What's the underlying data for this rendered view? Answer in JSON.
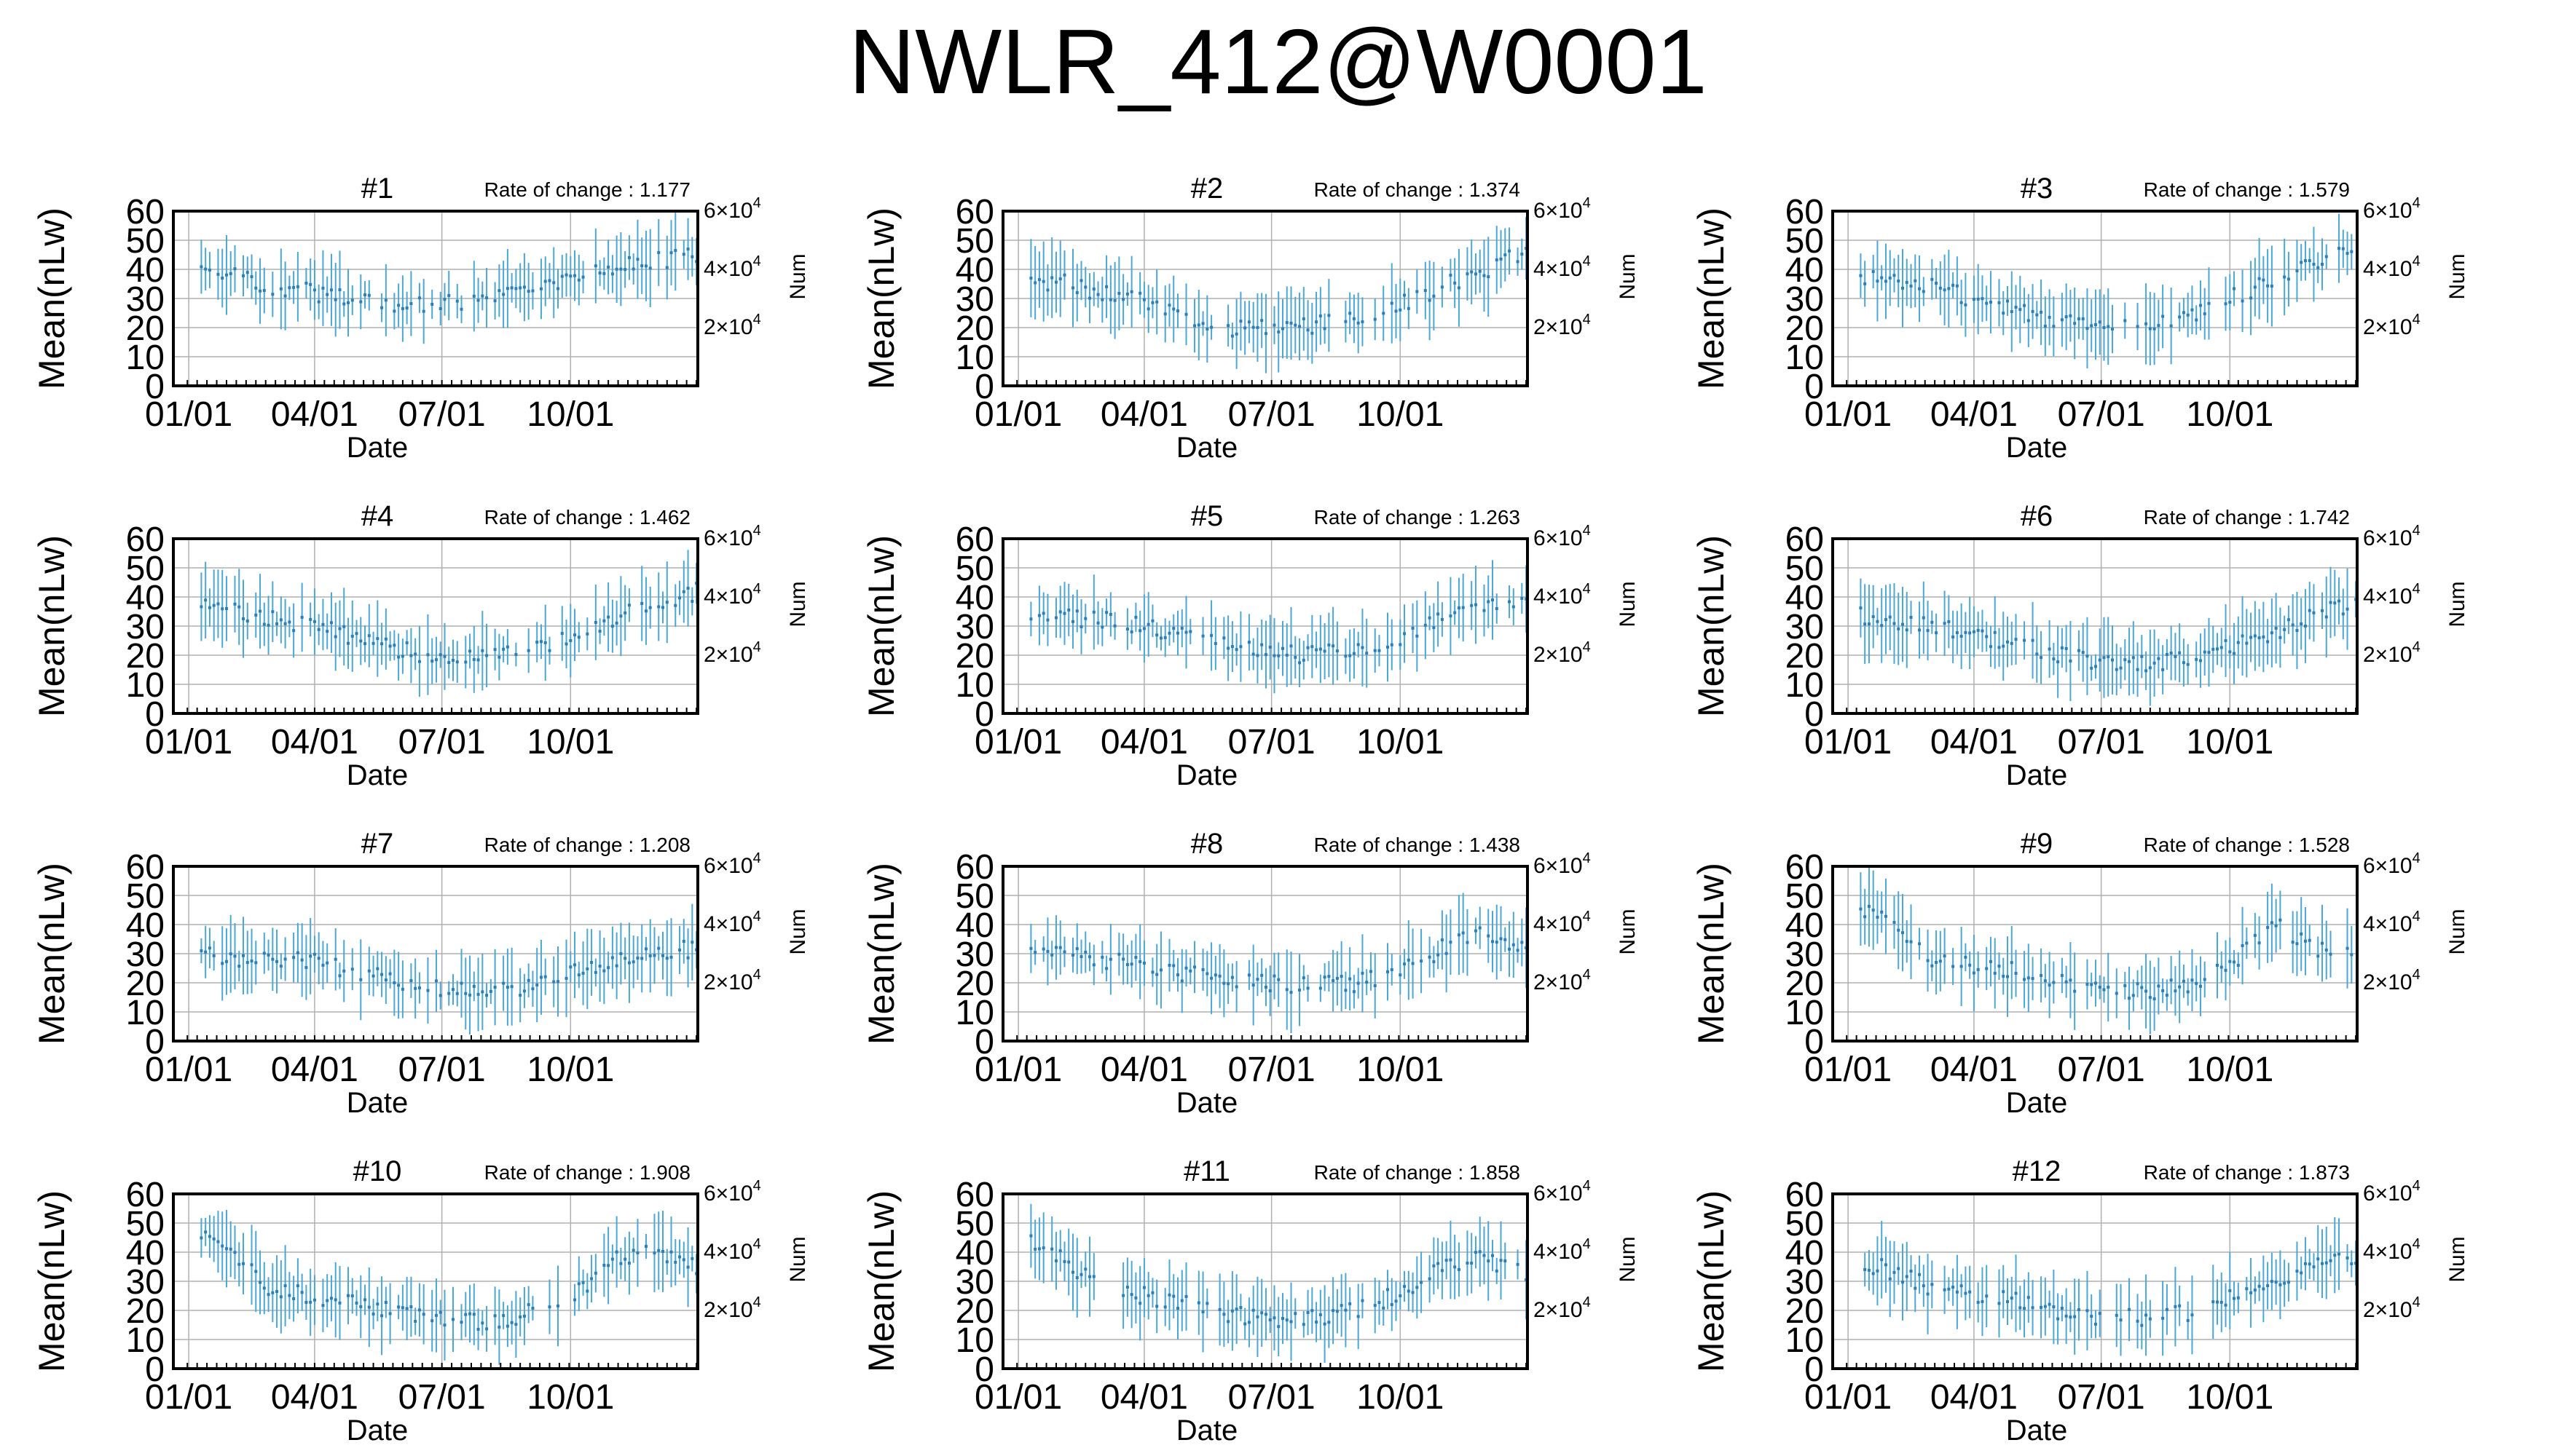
{
  "page": {
    "title": "NWLR_412@W0001"
  },
  "chart_common": {
    "type": "line",
    "xlabel": "Date",
    "ylabel": "Mean(nLw)",
    "y2label": "Num",
    "x_ticks": [
      "01/01",
      "04/01",
      "07/01",
      "10/01"
    ],
    "x_tick_days": [
      1,
      91,
      182,
      274
    ],
    "xlim": [
      -10,
      365
    ],
    "ylim": [
      0,
      60
    ],
    "y_ticks": [
      0,
      10,
      20,
      30,
      40,
      50,
      60
    ],
    "y2_ticks": [
      {
        "value": 20000,
        "mantissa": "2×10",
        "exponent": "4"
      },
      {
        "value": 40000,
        "mantissa": "4×10",
        "exponent": "4"
      },
      {
        "value": 60000,
        "mantissa": "6×10",
        "exponent": "4"
      }
    ],
    "y2lim": [
      0,
      60000
    ],
    "grid": true,
    "series_color": "#4aa8d8",
    "rate_prefix": "Rate of change : "
  },
  "chart_data": [
    {
      "panel": "#1",
      "rate_of_change": "1.177",
      "days_step": 7,
      "mean_profile": [
        [
          1,
          38
        ],
        [
          30,
          38
        ],
        [
          60,
          34
        ],
        [
          91,
          32
        ],
        [
          120,
          30
        ],
        [
          152,
          28
        ],
        [
          182,
          28
        ],
        [
          213,
          30
        ],
        [
          244,
          32
        ],
        [
          274,
          36
        ],
        [
          305,
          40
        ],
        [
          335,
          43
        ],
        [
          365,
          45
        ]
      ]
    },
    {
      "panel": "#2",
      "rate_of_change": "1.374",
      "days_step": 7,
      "mean_profile": [
        [
          1,
          35
        ],
        [
          30,
          36
        ],
        [
          60,
          32
        ],
        [
          91,
          29
        ],
        [
          120,
          24
        ],
        [
          152,
          20
        ],
        [
          182,
          20
        ],
        [
          213,
          21
        ],
        [
          244,
          24
        ],
        [
          274,
          28
        ],
        [
          305,
          34
        ],
        [
          335,
          40
        ],
        [
          365,
          46
        ]
      ]
    },
    {
      "panel": "#3",
      "rate_of_change": "1.579",
      "days_step": 7,
      "mean_profile": [
        [
          1,
          38
        ],
        [
          30,
          36
        ],
        [
          60,
          34
        ],
        [
          91,
          30
        ],
        [
          120,
          26
        ],
        [
          152,
          22
        ],
        [
          182,
          20
        ],
        [
          213,
          20
        ],
        [
          244,
          24
        ],
        [
          274,
          30
        ],
        [
          305,
          36
        ],
        [
          335,
          42
        ],
        [
          365,
          46
        ]
      ]
    },
    {
      "panel": "#4",
      "rate_of_change": "1.462",
      "days_step": 7,
      "mean_profile": [
        [
          1,
          38
        ],
        [
          30,
          36
        ],
        [
          60,
          33
        ],
        [
          91,
          30
        ],
        [
          120,
          26
        ],
        [
          152,
          22
        ],
        [
          182,
          19
        ],
        [
          213,
          19
        ],
        [
          244,
          22
        ],
        [
          274,
          26
        ],
        [
          305,
          32
        ],
        [
          335,
          38
        ],
        [
          365,
          42
        ]
      ]
    },
    {
      "panel": "#5",
      "rate_of_change": "1.263",
      "days_step": 7,
      "mean_profile": [
        [
          1,
          35
        ],
        [
          30,
          33
        ],
        [
          60,
          32
        ],
        [
          91,
          30
        ],
        [
          120,
          27
        ],
        [
          152,
          23
        ],
        [
          182,
          21
        ],
        [
          213,
          20
        ],
        [
          244,
          22
        ],
        [
          274,
          26
        ],
        [
          305,
          32
        ],
        [
          335,
          37
        ],
        [
          365,
          38
        ]
      ]
    },
    {
      "panel": "#6",
      "rate_of_change": "1.742",
      "days_step": 7,
      "mean_profile": [
        [
          1,
          34
        ],
        [
          30,
          32
        ],
        [
          60,
          30
        ],
        [
          91,
          27
        ],
        [
          120,
          24
        ],
        [
          152,
          20
        ],
        [
          182,
          18
        ],
        [
          213,
          17
        ],
        [
          244,
          19
        ],
        [
          274,
          23
        ],
        [
          305,
          28
        ],
        [
          335,
          34
        ],
        [
          365,
          38
        ]
      ]
    },
    {
      "panel": "#7",
      "rate_of_change": "1.208",
      "days_step": 7,
      "mean_profile": [
        [
          1,
          30
        ],
        [
          30,
          28
        ],
        [
          60,
          28
        ],
        [
          91,
          27
        ],
        [
          120,
          24
        ],
        [
          152,
          20
        ],
        [
          182,
          18
        ],
        [
          213,
          17
        ],
        [
          244,
          19
        ],
        [
          274,
          23
        ],
        [
          305,
          27
        ],
        [
          335,
          30
        ],
        [
          365,
          32
        ]
      ]
    },
    {
      "panel": "#8",
      "rate_of_change": "1.438",
      "days_step": 7,
      "mean_profile": [
        [
          1,
          32
        ],
        [
          30,
          30
        ],
        [
          60,
          28
        ],
        [
          91,
          26
        ],
        [
          120,
          23
        ],
        [
          152,
          21
        ],
        [
          182,
          20
        ],
        [
          213,
          19
        ],
        [
          244,
          20
        ],
        [
          274,
          24
        ],
        [
          305,
          32
        ],
        [
          335,
          38
        ],
        [
          365,
          30
        ]
      ]
    },
    {
      "panel": "#9",
      "rate_of_change": "1.528",
      "days_step": 7,
      "mean_profile": [
        [
          1,
          48
        ],
        [
          30,
          42
        ],
        [
          60,
          28
        ],
        [
          91,
          26
        ],
        [
          120,
          24
        ],
        [
          152,
          21
        ],
        [
          182,
          18
        ],
        [
          213,
          17
        ],
        [
          244,
          19
        ],
        [
          274,
          26
        ],
        [
          305,
          40
        ],
        [
          335,
          32
        ],
        [
          365,
          30
        ]
      ]
    },
    {
      "panel": "#10",
      "rate_of_change": "1.908",
      "days_step": 7,
      "mean_profile": [
        [
          1,
          50
        ],
        [
          30,
          40
        ],
        [
          60,
          27
        ],
        [
          91,
          25
        ],
        [
          120,
          22
        ],
        [
          152,
          20
        ],
        [
          182,
          17
        ],
        [
          213,
          16
        ],
        [
          244,
          19
        ],
        [
          274,
          24
        ],
        [
          305,
          38
        ],
        [
          335,
          40
        ],
        [
          365,
          34
        ]
      ]
    },
    {
      "panel": "#11",
      "rate_of_change": "1.858",
      "days_step": 7,
      "mean_profile": [
        [
          1,
          45
        ],
        [
          30,
          38
        ],
        [
          60,
          28
        ],
        [
          91,
          25
        ],
        [
          120,
          22
        ],
        [
          152,
          19
        ],
        [
          182,
          17
        ],
        [
          213,
          17
        ],
        [
          244,
          20
        ],
        [
          274,
          26
        ],
        [
          305,
          36
        ],
        [
          335,
          38
        ],
        [
          365,
          32
        ]
      ]
    },
    {
      "panel": "#12",
      "rate_of_change": "1.873",
      "days_step": 7,
      "mean_profile": [
        [
          1,
          38
        ],
        [
          30,
          34
        ],
        [
          60,
          28
        ],
        [
          91,
          26
        ],
        [
          120,
          23
        ],
        [
          152,
          20
        ],
        [
          182,
          18
        ],
        [
          213,
          17
        ],
        [
          244,
          19
        ],
        [
          274,
          24
        ],
        [
          305,
          30
        ],
        [
          335,
          36
        ],
        [
          365,
          38
        ]
      ]
    }
  ]
}
